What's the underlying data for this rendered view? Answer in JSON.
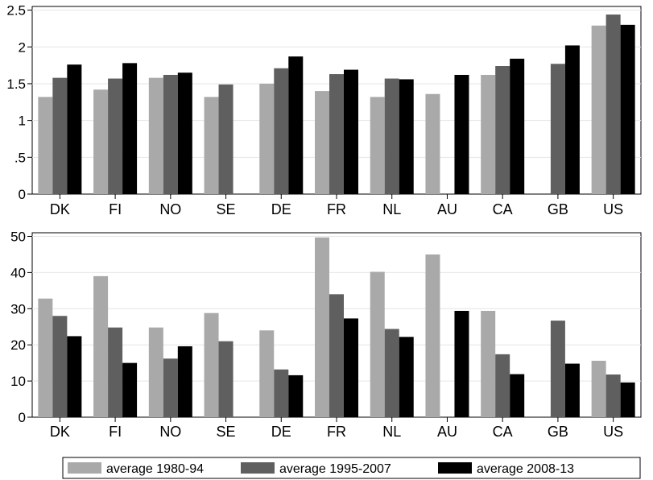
{
  "chart_data": [
    {
      "type": "bar",
      "title": "",
      "xlabel": "",
      "ylabel": "",
      "categories": [
        "DK",
        "FI",
        "NO",
        "SE",
        "DE",
        "FR",
        "NL",
        "AU",
        "CA",
        "GB",
        "US"
      ],
      "ylim": [
        0,
        2.55
      ],
      "yticks": [
        0,
        0.5,
        1,
        1.5,
        2,
        2.5
      ],
      "ytick_labels": [
        "0",
        ".5",
        "1",
        "1.5",
        "2",
        "2.5"
      ],
      "grid": true,
      "series": [
        {
          "name": "average 1980-94",
          "color": "#a9a9a9",
          "values": [
            1.32,
            1.42,
            1.58,
            1.32,
            1.5,
            1.4,
            1.32,
            1.36,
            1.62,
            null,
            2.29
          ]
        },
        {
          "name": "average 1995-2007",
          "color": "#5f5f5f",
          "values": [
            1.58,
            1.57,
            1.62,
            1.49,
            1.71,
            1.63,
            1.57,
            null,
            1.74,
            1.77,
            2.44
          ]
        },
        {
          "name": "average 2008-13",
          "color": "#000000",
          "values": [
            1.76,
            1.78,
            1.65,
            null,
            1.87,
            1.69,
            1.56,
            1.62,
            1.84,
            2.02,
            2.3
          ]
        }
      ]
    },
    {
      "type": "bar",
      "title": "",
      "xlabel": "",
      "ylabel": "",
      "categories": [
        "DK",
        "FI",
        "NO",
        "SE",
        "DE",
        "FR",
        "NL",
        "AU",
        "CA",
        "GB",
        "US"
      ],
      "ylim": [
        0,
        51
      ],
      "yticks": [
        0,
        10,
        20,
        30,
        40,
        50
      ],
      "ytick_labels": [
        "0",
        "10",
        "20",
        "30",
        "40",
        "50"
      ],
      "grid": true,
      "series": [
        {
          "name": "average 1980-94",
          "color": "#a9a9a9",
          "values": [
            32.8,
            39.0,
            24.8,
            28.8,
            24.0,
            49.7,
            40.2,
            45.0,
            29.4,
            null,
            15.6
          ]
        },
        {
          "name": "average 1995-2007",
          "color": "#5f5f5f",
          "values": [
            28.0,
            24.8,
            16.2,
            21.0,
            13.2,
            34.0,
            24.4,
            null,
            17.4,
            26.7,
            11.8
          ]
        },
        {
          "name": "average 2008-13",
          "color": "#000000",
          "values": [
            22.4,
            15.0,
            19.6,
            null,
            11.6,
            27.3,
            22.2,
            29.4,
            11.9,
            14.8,
            9.6
          ]
        }
      ]
    }
  ],
  "legend": {
    "placement": "bottom",
    "entries": [
      {
        "label": "average 1980-94",
        "color": "#a9a9a9"
      },
      {
        "label": "average 1995-2007",
        "color": "#5f5f5f"
      },
      {
        "label": "average 2008-13",
        "color": "#000000"
      }
    ]
  }
}
